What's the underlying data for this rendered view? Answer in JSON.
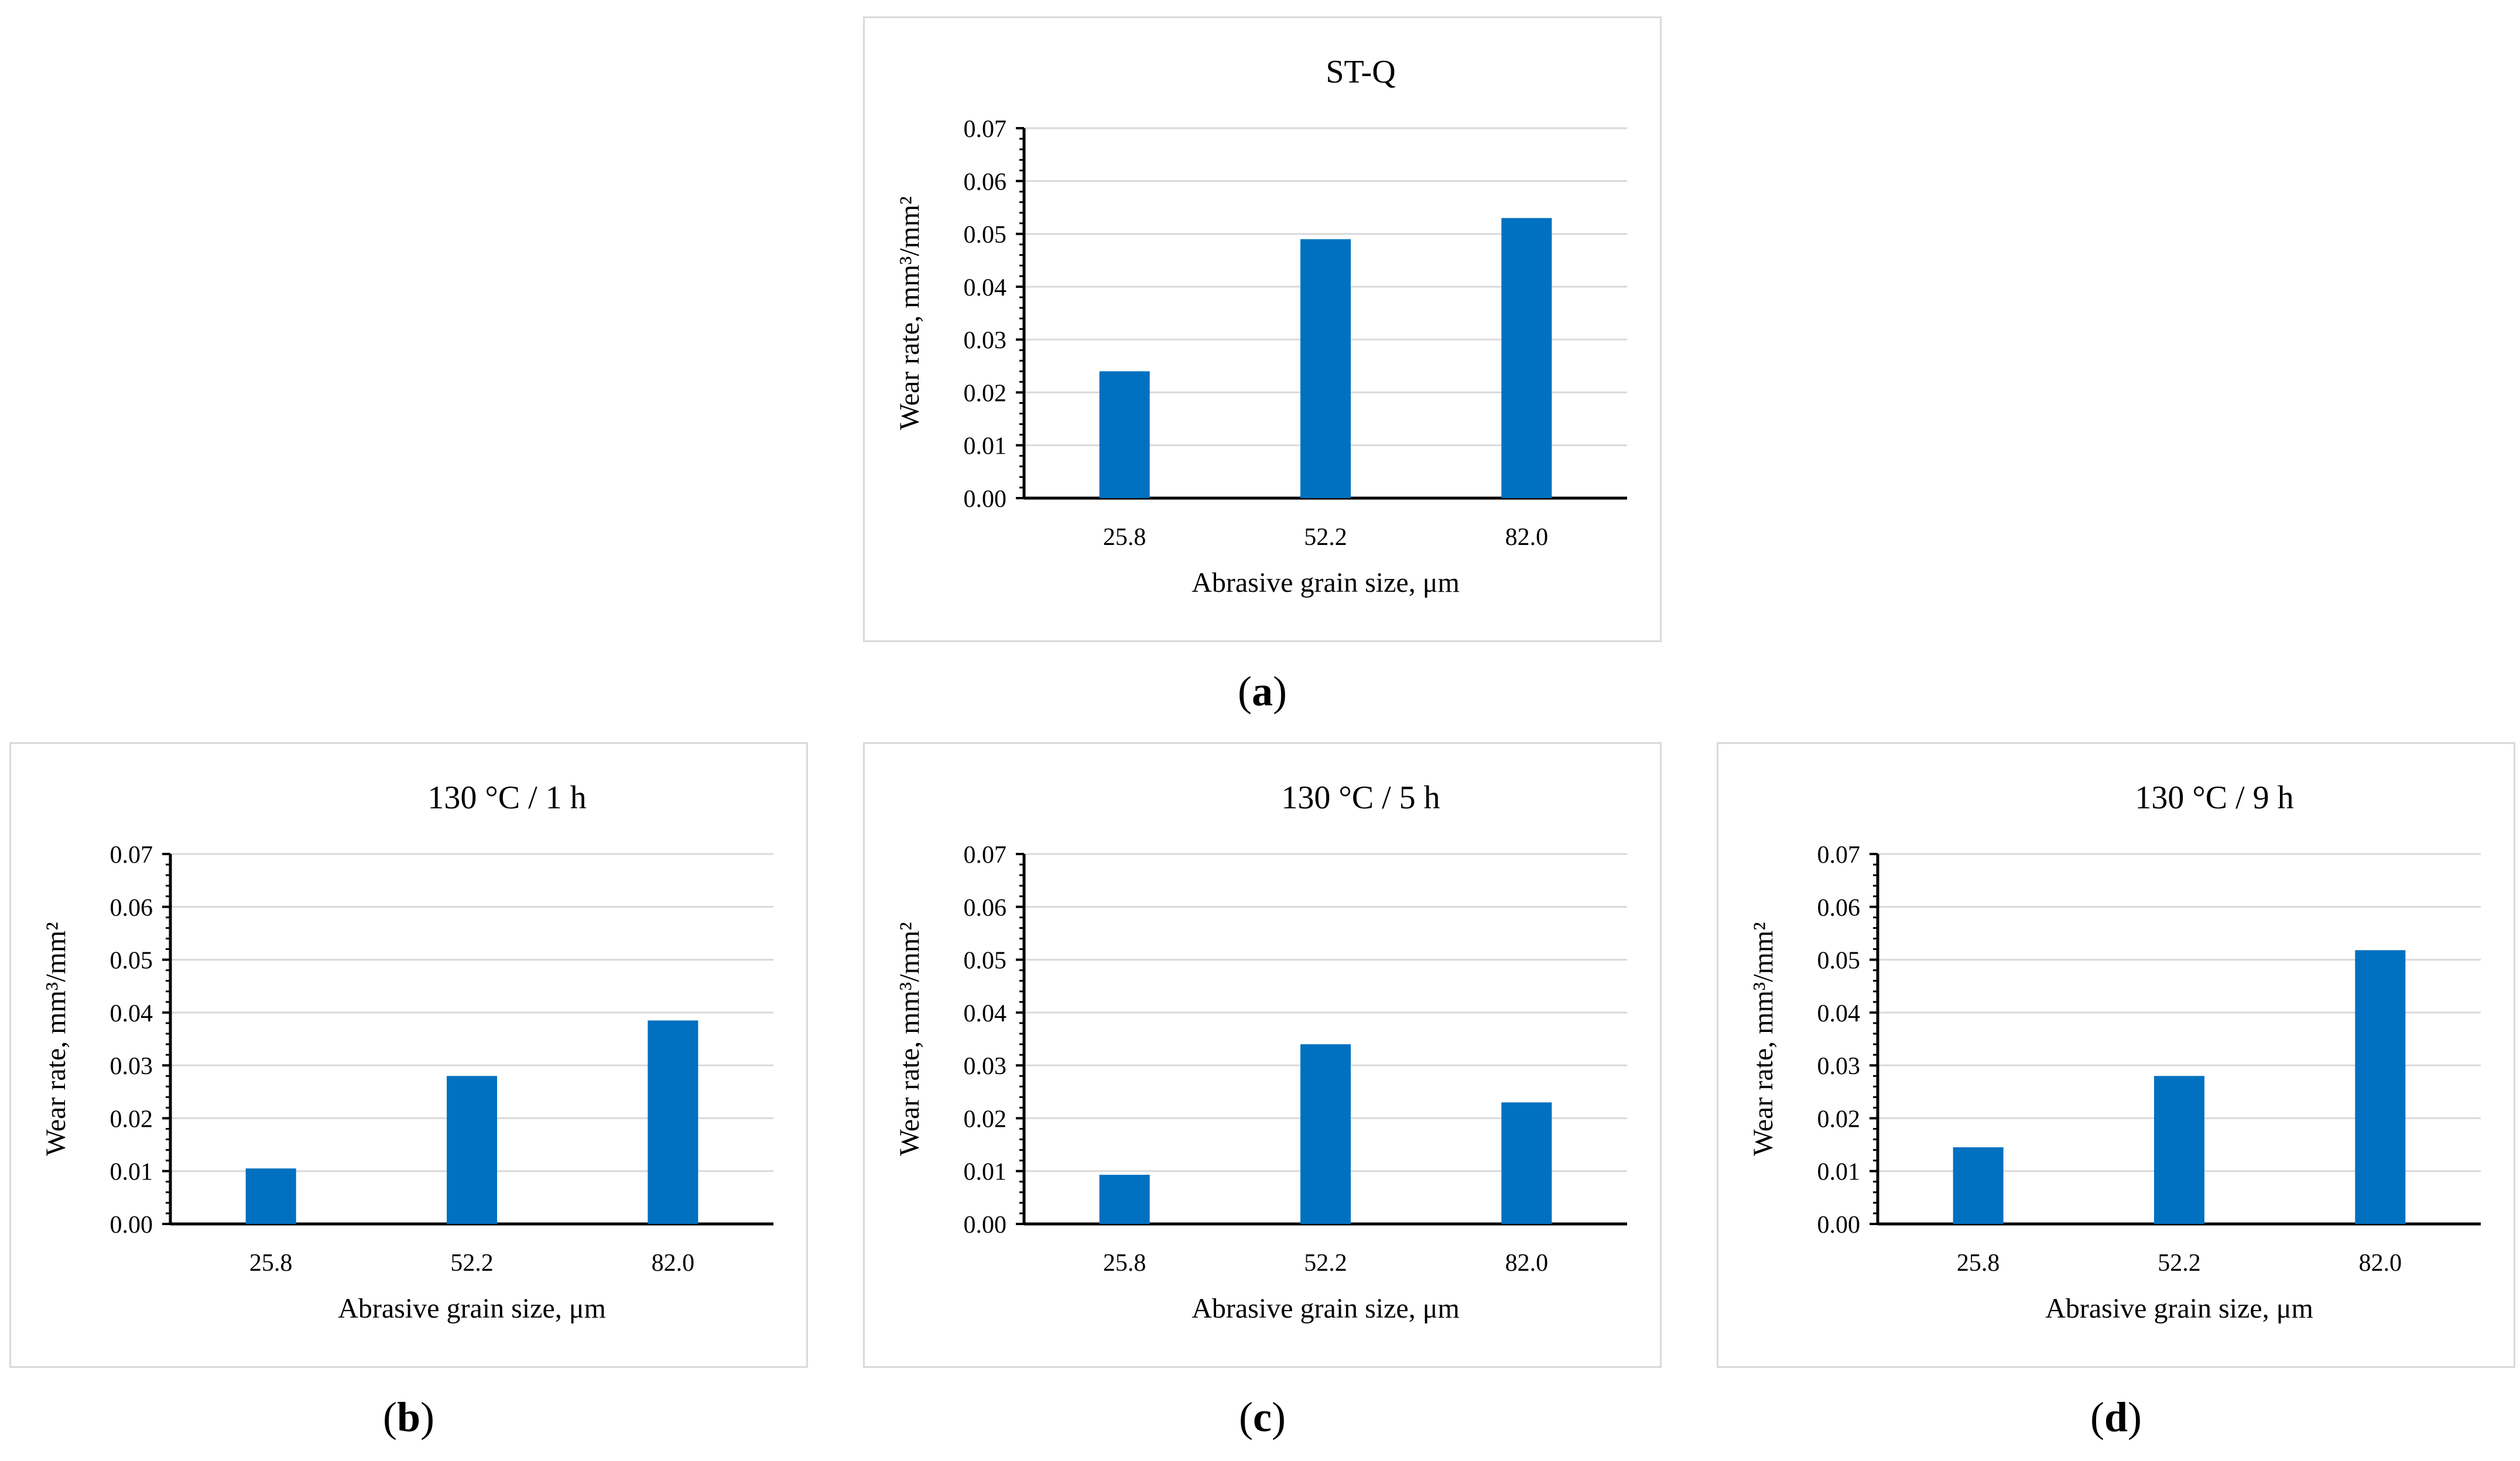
{
  "chart_data": [
    {
      "type": "bar",
      "panel_label": "a",
      "title": "ST-Q",
      "categories": [
        "25.8",
        "52.2",
        "82.0"
      ],
      "values": [
        0.024,
        0.049,
        0.053
      ],
      "xlabel": "Abrasive grain size, μm",
      "ylabel": "Wear rate, mm³/mm²",
      "ylim": [
        0,
        0.07
      ],
      "yticks": [
        "0.00",
        "0.01",
        "0.02",
        "0.03",
        "0.04",
        "0.05",
        "0.06",
        "0.07"
      ],
      "grid": true,
      "bar_color": "#0070c0"
    },
    {
      "type": "bar",
      "panel_label": "b",
      "title": "130 °C / 1 h",
      "categories": [
        "25.8",
        "52.2",
        "82.0"
      ],
      "values": [
        0.0105,
        0.028,
        0.0385
      ],
      "xlabel": "Abrasive grain size, μm",
      "ylabel": "Wear rate, mm³/mm²",
      "ylim": [
        0,
        0.07
      ],
      "yticks": [
        "0.00",
        "0.01",
        "0.02",
        "0.03",
        "0.04",
        "0.05",
        "0.06",
        "0.07"
      ],
      "grid": true,
      "bar_color": "#0070c0"
    },
    {
      "type": "bar",
      "panel_label": "c",
      "title": "130 °C / 5 h",
      "categories": [
        "25.8",
        "52.2",
        "82.0"
      ],
      "values": [
        0.0093,
        0.034,
        0.023
      ],
      "xlabel": "Abrasive grain size, μm",
      "ylabel": "Wear rate, mm³/mm²",
      "ylim": [
        0,
        0.07
      ],
      "yticks": [
        "0.00",
        "0.01",
        "0.02",
        "0.03",
        "0.04",
        "0.05",
        "0.06",
        "0.07"
      ],
      "grid": true,
      "bar_color": "#0070c0"
    },
    {
      "type": "bar",
      "panel_label": "d",
      "title": "130 °C / 9 h",
      "categories": [
        "25.8",
        "52.2",
        "82.0"
      ],
      "values": [
        0.0145,
        0.028,
        0.0518
      ],
      "xlabel": "Abrasive grain size, μm",
      "ylabel": "Wear rate, mm³/mm²",
      "ylim": [
        0,
        0.07
      ],
      "yticks": [
        "0.00",
        "0.01",
        "0.02",
        "0.03",
        "0.04",
        "0.05",
        "0.06",
        "0.07"
      ],
      "grid": true,
      "bar_color": "#0070c0"
    }
  ]
}
